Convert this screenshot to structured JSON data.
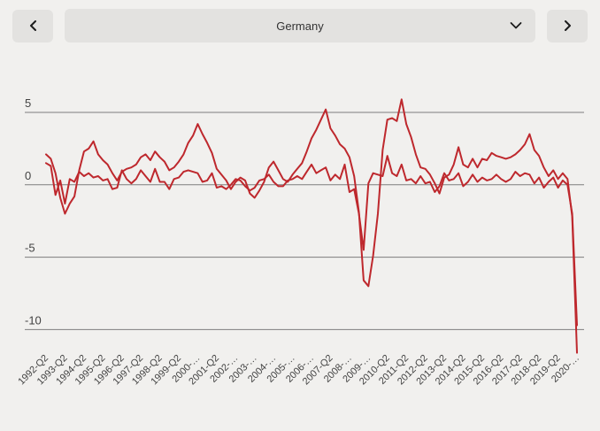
{
  "toolbar": {
    "country_selected": "Germany",
    "prev_icon": "chevron-left",
    "next_icon": "chevron-right",
    "select_icon": "chevron-down"
  },
  "colors": {
    "line": "#be282d",
    "grid": "#7d7d7d",
    "axis_text": "#424242",
    "background": "#f1f0ee",
    "control_bg": "#e3e2e0",
    "control_text": "#333333"
  },
  "chart_data": {
    "type": "line",
    "title": "",
    "x_unit": "quarter",
    "x_points_per_label": 4,
    "x_tick_labels": [
      "1992-Q2",
      "1993-Q2",
      "1994-Q2",
      "1995-Q2",
      "1996-Q2",
      "1997-Q2",
      "1998-Q2",
      "1999-Q2",
      "2000-…",
      "2001-Q2",
      "2002-…",
      "2003-…",
      "2004-…",
      "2005-…",
      "2006-…",
      "2007-Q2",
      "2008-…",
      "2009-…",
      "2010-Q2",
      "2011-Q2",
      "2012-Q2",
      "2013-Q2",
      "2014-Q2",
      "2015-Q2",
      "2016-Q2",
      "2017-Q2",
      "2018-Q2",
      "2019-Q2",
      "2020-…"
    ],
    "y_ticks": [
      5,
      0,
      -5,
      -10
    ],
    "ylim": [
      -12.5,
      6.5
    ],
    "grid": true,
    "legend": false,
    "series": [
      {
        "name": "series-a",
        "values": [
          2.1,
          1.8,
          0.8,
          -0.9,
          -2.0,
          -1.3,
          -0.8,
          1.0,
          2.3,
          2.5,
          3.0,
          2.1,
          1.7,
          1.4,
          0.8,
          0.3,
          0.9,
          1.1,
          1.2,
          1.4,
          1.9,
          2.1,
          1.7,
          2.3,
          1.9,
          1.6,
          1.0,
          1.2,
          1.6,
          2.1,
          2.9,
          3.4,
          4.2,
          3.5,
          2.9,
          2.2,
          1.1,
          0.7,
          0.3,
          -0.3,
          0.2,
          0.5,
          0.3,
          -0.6,
          -0.9,
          -0.4,
          0.2,
          1.2,
          1.6,
          1.0,
          0.4,
          0.2,
          0.7,
          1.1,
          1.5,
          2.3,
          3.2,
          3.8,
          4.5,
          5.2,
          3.9,
          3.4,
          2.8,
          2.5,
          1.9,
          0.6,
          -1.9,
          -6.6,
          -7.0,
          -4.9,
          -2.0,
          2.4,
          4.5,
          4.6,
          4.4,
          5.9,
          4.2,
          3.3,
          2.1,
          1.2,
          1.1,
          0.7,
          0.1,
          -0.6,
          0.5,
          0.7,
          1.4,
          2.6,
          1.4,
          1.2,
          1.8,
          1.2,
          1.8,
          1.7,
          2.2,
          2.0,
          1.9,
          1.8,
          1.9,
          2.1,
          2.4,
          2.8,
          3.5,
          2.4,
          2.0,
          1.2,
          0.6,
          1.0,
          0.4,
          0.8,
          0.4,
          -2.2,
          -11.6
        ]
      },
      {
        "name": "series-b",
        "values": [
          1.5,
          1.3,
          -0.7,
          0.3,
          -1.3,
          0.4,
          0.2,
          0.9,
          0.6,
          0.8,
          0.5,
          0.6,
          0.3,
          0.4,
          -0.3,
          -0.2,
          1.0,
          0.4,
          0.1,
          0.4,
          1.0,
          0.6,
          0.2,
          1.1,
          0.2,
          0.2,
          -0.3,
          0.4,
          0.5,
          0.9,
          1.0,
          0.9,
          0.8,
          0.2,
          0.3,
          0.8,
          -0.2,
          -0.1,
          -0.3,
          0.0,
          0.4,
          0.3,
          -0.1,
          -0.4,
          -0.2,
          0.3,
          0.4,
          0.7,
          0.2,
          -0.1,
          -0.1,
          0.3,
          0.4,
          0.6,
          0.4,
          0.9,
          1.4,
          0.8,
          1.0,
          1.2,
          0.3,
          0.7,
          0.4,
          1.4,
          -0.5,
          -0.3,
          -2.0,
          -4.5,
          0.1,
          0.8,
          0.7,
          0.6,
          2.0,
          0.8,
          0.6,
          1.4,
          0.3,
          0.4,
          0.1,
          0.6,
          0.1,
          0.2,
          -0.5,
          -0.1,
          0.8,
          0.3,
          0.4,
          0.8,
          -0.1,
          0.2,
          0.7,
          0.2,
          0.5,
          0.3,
          0.4,
          0.7,
          0.4,
          0.2,
          0.4,
          0.9,
          0.6,
          0.8,
          0.7,
          0.1,
          0.5,
          -0.2,
          0.2,
          0.5,
          -0.2,
          0.3,
          0.0,
          -2.0,
          -9.7
        ]
      }
    ]
  }
}
